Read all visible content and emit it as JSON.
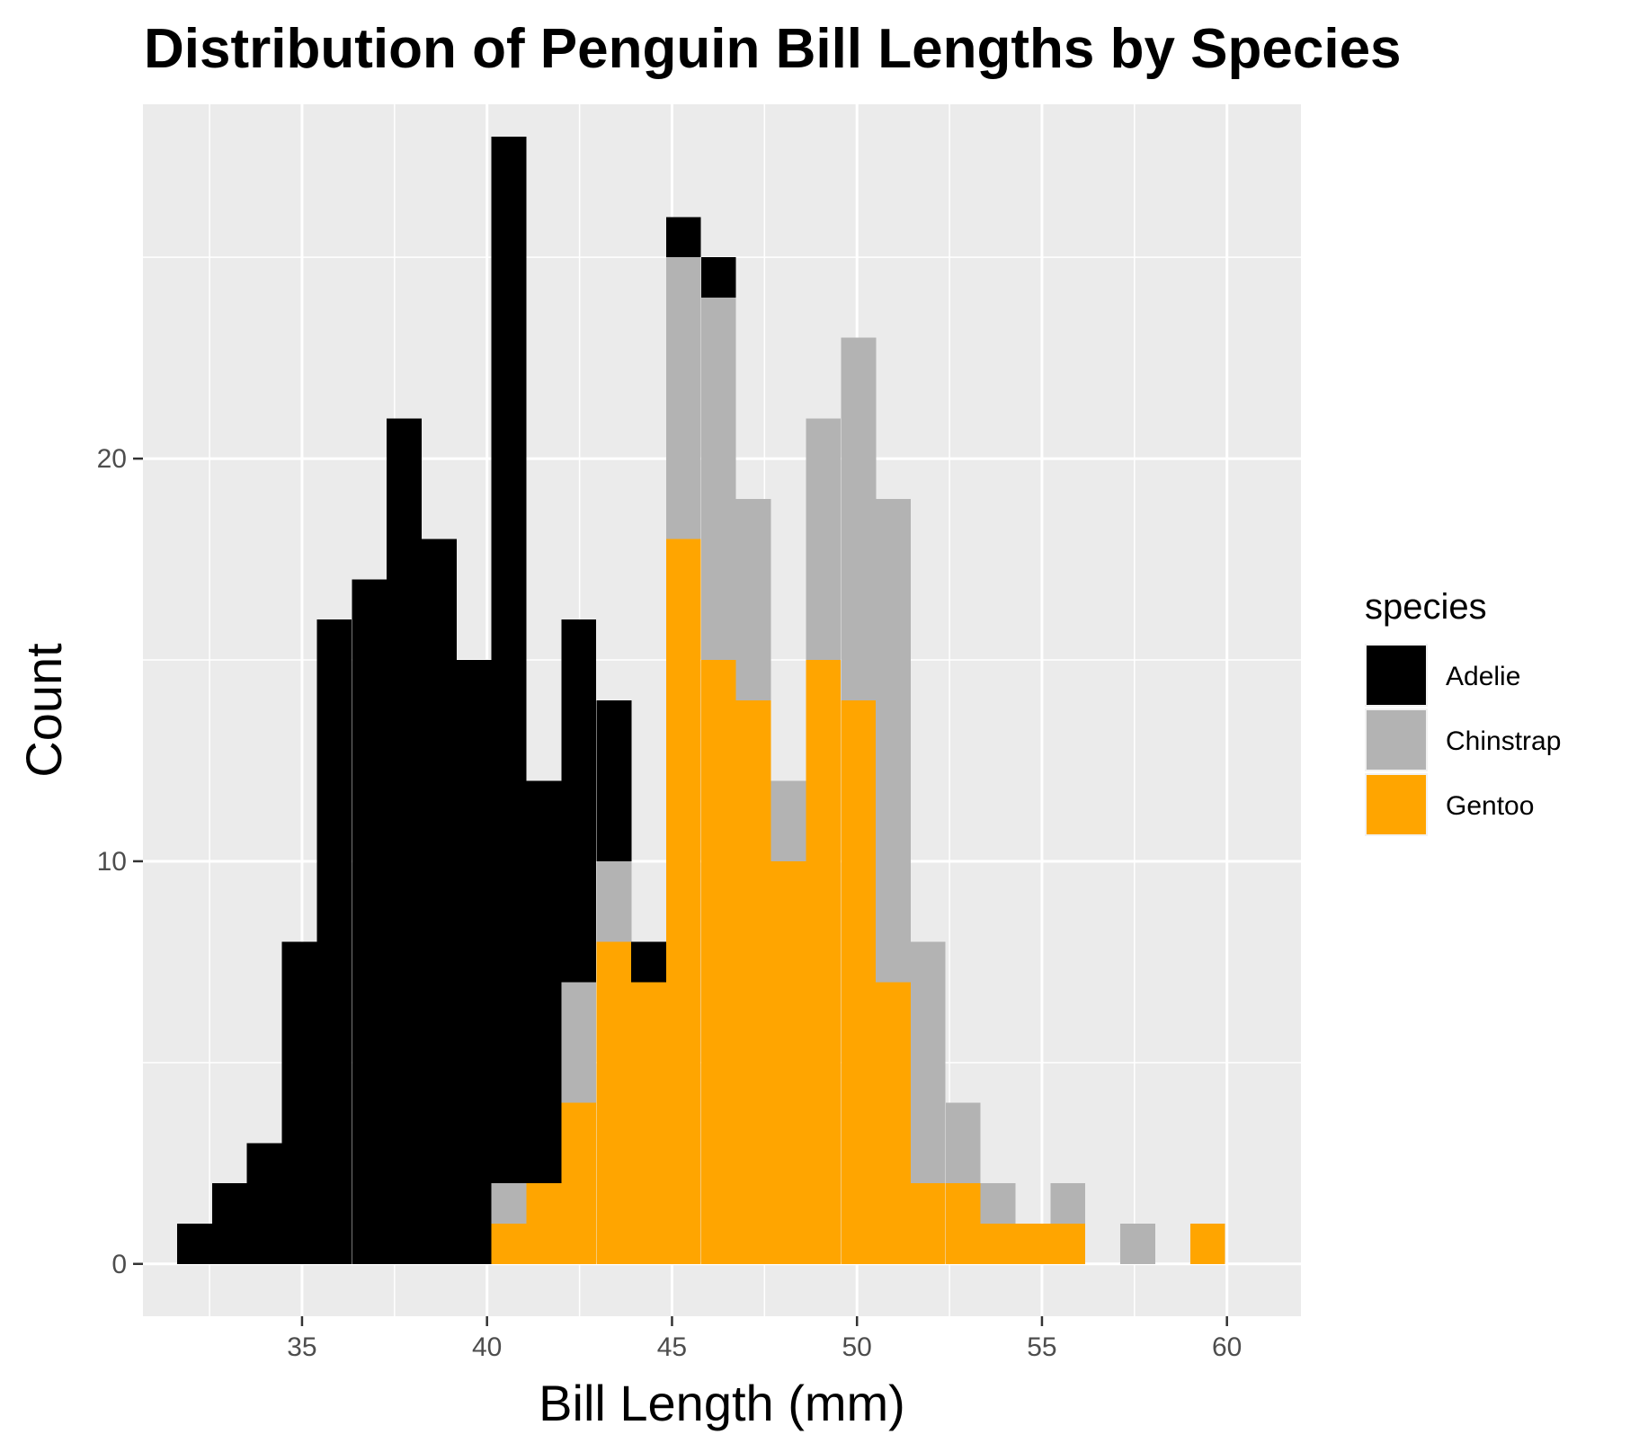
{
  "chart_data": {
    "type": "bar",
    "subtype": "stacked histogram",
    "title": "Distribution of Penguin Bill Lengths by Species",
    "xlabel": "Bill Length (mm)",
    "ylabel": "Count",
    "xlim": [
      30.7,
      62.0
    ],
    "ylim": [
      -1.3,
      28.8
    ],
    "x_ticks": [
      35,
      40,
      45,
      50,
      55,
      60
    ],
    "y_ticks": [
      0,
      10,
      20
    ],
    "grid": true,
    "legend_title": "species",
    "legend_position": "right",
    "bin_width": 0.944,
    "bin_centers": [
      32.1,
      33.04,
      33.98,
      34.93,
      35.87,
      36.82,
      37.76,
      38.71,
      39.65,
      40.59,
      41.54,
      42.48,
      43.43,
      44.37,
      45.31,
      46.26,
      47.2,
      48.15,
      49.09,
      50.04,
      50.98,
      51.92,
      52.87,
      53.81,
      54.76,
      55.7,
      56.64,
      57.59,
      58.53,
      59.48
    ],
    "series": [
      {
        "name": "Adelie",
        "color": "#000000",
        "values": [
          1,
          2,
          3,
          8,
          16,
          17,
          21,
          18,
          15,
          26,
          10,
          9,
          4,
          1,
          1,
          1,
          0,
          0,
          0,
          0,
          0,
          0,
          0,
          0,
          0,
          0,
          0,
          0,
          0,
          0
        ]
      },
      {
        "name": "Chinstrap",
        "color": "#b3b3b3",
        "values": [
          0,
          0,
          0,
          0,
          0,
          0,
          0,
          0,
          0,
          1,
          0,
          3,
          2,
          0,
          7,
          9,
          5,
          2,
          6,
          9,
          12,
          6,
          2,
          1,
          0,
          1,
          0,
          1,
          0,
          0
        ]
      },
      {
        "name": "Gentoo",
        "color": "#ffa500",
        "values": [
          0,
          0,
          0,
          0,
          0,
          0,
          0,
          0,
          0,
          1,
          2,
          4,
          8,
          7,
          18,
          15,
          14,
          10,
          15,
          14,
          7,
          2,
          2,
          1,
          1,
          1,
          0,
          0,
          0,
          1
        ]
      }
    ]
  }
}
